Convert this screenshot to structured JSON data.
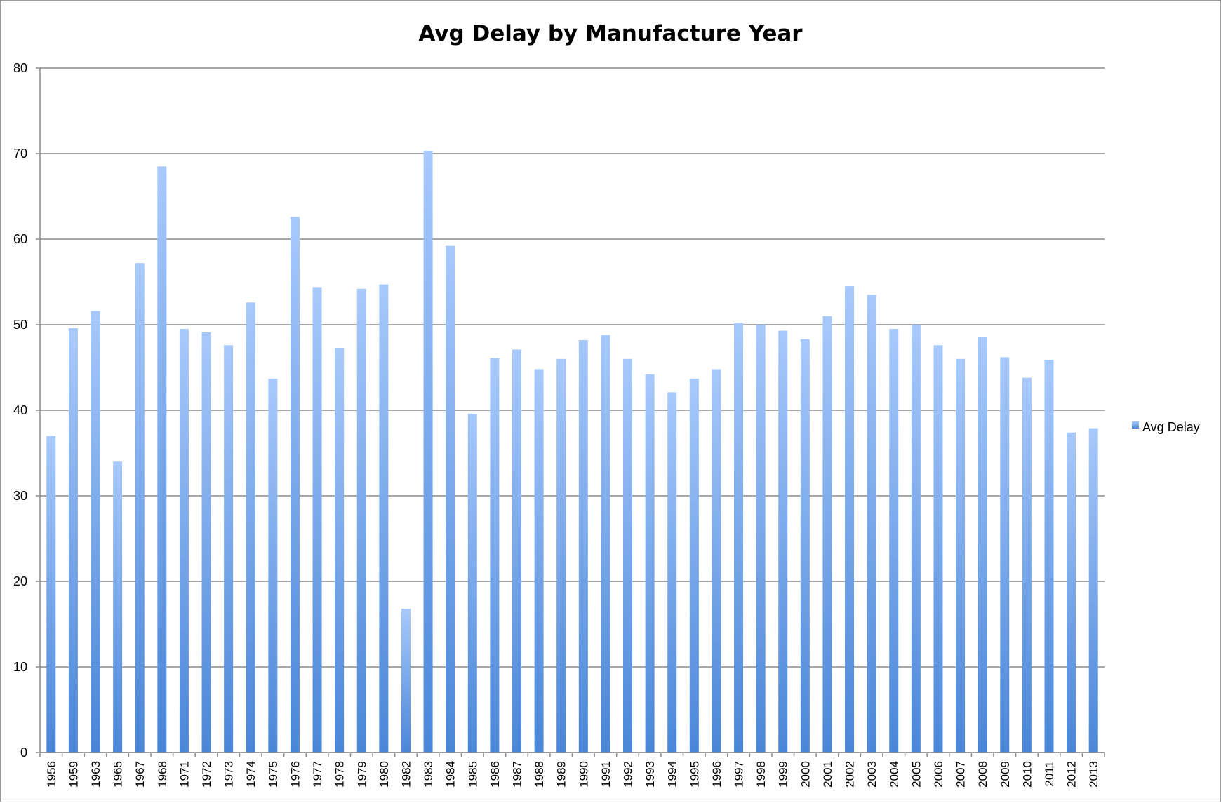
{
  "chart_data": {
    "type": "bar",
    "title": "Avg Delay by Manufacture Year",
    "xlabel": "",
    "ylabel": "",
    "ylim": [
      0,
      80
    ],
    "yticks": [
      0,
      10,
      20,
      30,
      40,
      50,
      60,
      70,
      80
    ],
    "grid": true,
    "legend_position": "right",
    "bar_color": "#4a86d8",
    "bar_color_light": "#a8c9fb",
    "categories": [
      "1956",
      "1959",
      "1963",
      "1965",
      "1967",
      "1968",
      "1971",
      "1972",
      "1973",
      "1974",
      "1975",
      "1976",
      "1977",
      "1978",
      "1979",
      "1980",
      "1982",
      "1983",
      "1984",
      "1985",
      "1986",
      "1987",
      "1988",
      "1989",
      "1990",
      "1991",
      "1992",
      "1993",
      "1994",
      "1995",
      "1996",
      "1997",
      "1998",
      "1999",
      "2000",
      "2001",
      "2002",
      "2003",
      "2004",
      "2005",
      "2006",
      "2007",
      "2008",
      "2009",
      "2010",
      "2011",
      "2012",
      "2013"
    ],
    "series": [
      {
        "name": "Avg Delay",
        "values": [
          37.0,
          49.6,
          51.6,
          34.0,
          57.2,
          68.5,
          49.5,
          49.1,
          47.6,
          52.6,
          43.7,
          62.6,
          54.4,
          47.3,
          54.2,
          54.7,
          16.8,
          70.3,
          59.2,
          39.6,
          46.1,
          47.1,
          44.8,
          46.0,
          48.2,
          48.8,
          46.0,
          44.2,
          42.1,
          43.7,
          44.8,
          50.2,
          50.0,
          49.3,
          48.3,
          51.0,
          54.5,
          53.5,
          49.5,
          50.0,
          47.6,
          46.0,
          48.6,
          46.2,
          43.8,
          45.9,
          37.4,
          37.9
        ]
      }
    ]
  }
}
